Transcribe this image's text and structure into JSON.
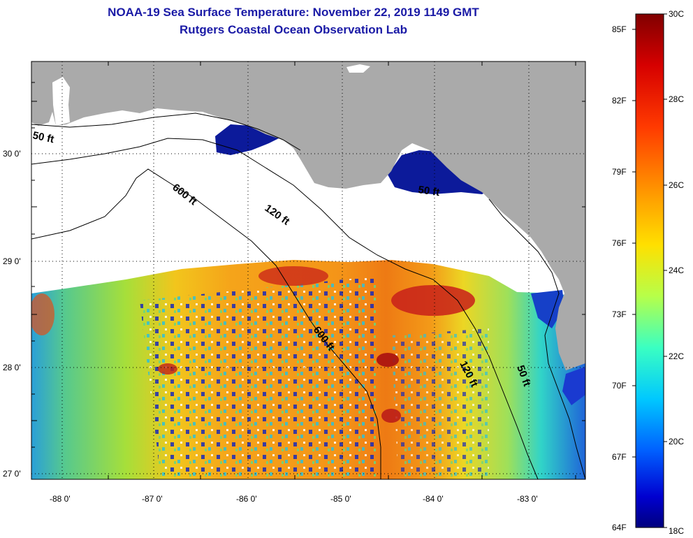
{
  "title": "NOAA-19 Sea Surface Temperature:  November 22, 2019 1149 GMT",
  "subtitle": "Rutgers Coastal Ocean Observation Lab",
  "map": {
    "lat_labels": [
      "30 0'",
      "29 0'",
      "28 0'",
      "27 0'"
    ],
    "lon_labels": [
      "-88 0'",
      "-87 0'",
      "-86 0'",
      "-85 0'",
      "-84 0'",
      "-83 0'"
    ],
    "lat_range": [
      26.97,
      30.85
    ],
    "lon_range": [
      -88.33,
      -82.45
    ],
    "grid": true
  },
  "contours": [
    {
      "label": "50 ft"
    },
    {
      "label": "600 ft"
    },
    {
      "label": "120 ft"
    },
    {
      "label": "50 ft"
    },
    {
      "label": "600 ft"
    },
    {
      "label": "120 ft"
    },
    {
      "label": "50 ft"
    }
  ],
  "colorbar": {
    "fahrenheit_labels": [
      "85F",
      "82F",
      "79F",
      "76F",
      "73F",
      "70F",
      "67F",
      "64F"
    ],
    "celsius_labels": [
      "30C",
      "28C",
      "26C",
      "24C",
      "22C",
      "20C",
      "18C"
    ],
    "range_f": [
      64,
      86
    ],
    "range_c": [
      18,
      30
    ]
  },
  "colors": {
    "land": "#aaaaaa",
    "cloud": "#ffffff",
    "title": "#1a1aa6"
  }
}
